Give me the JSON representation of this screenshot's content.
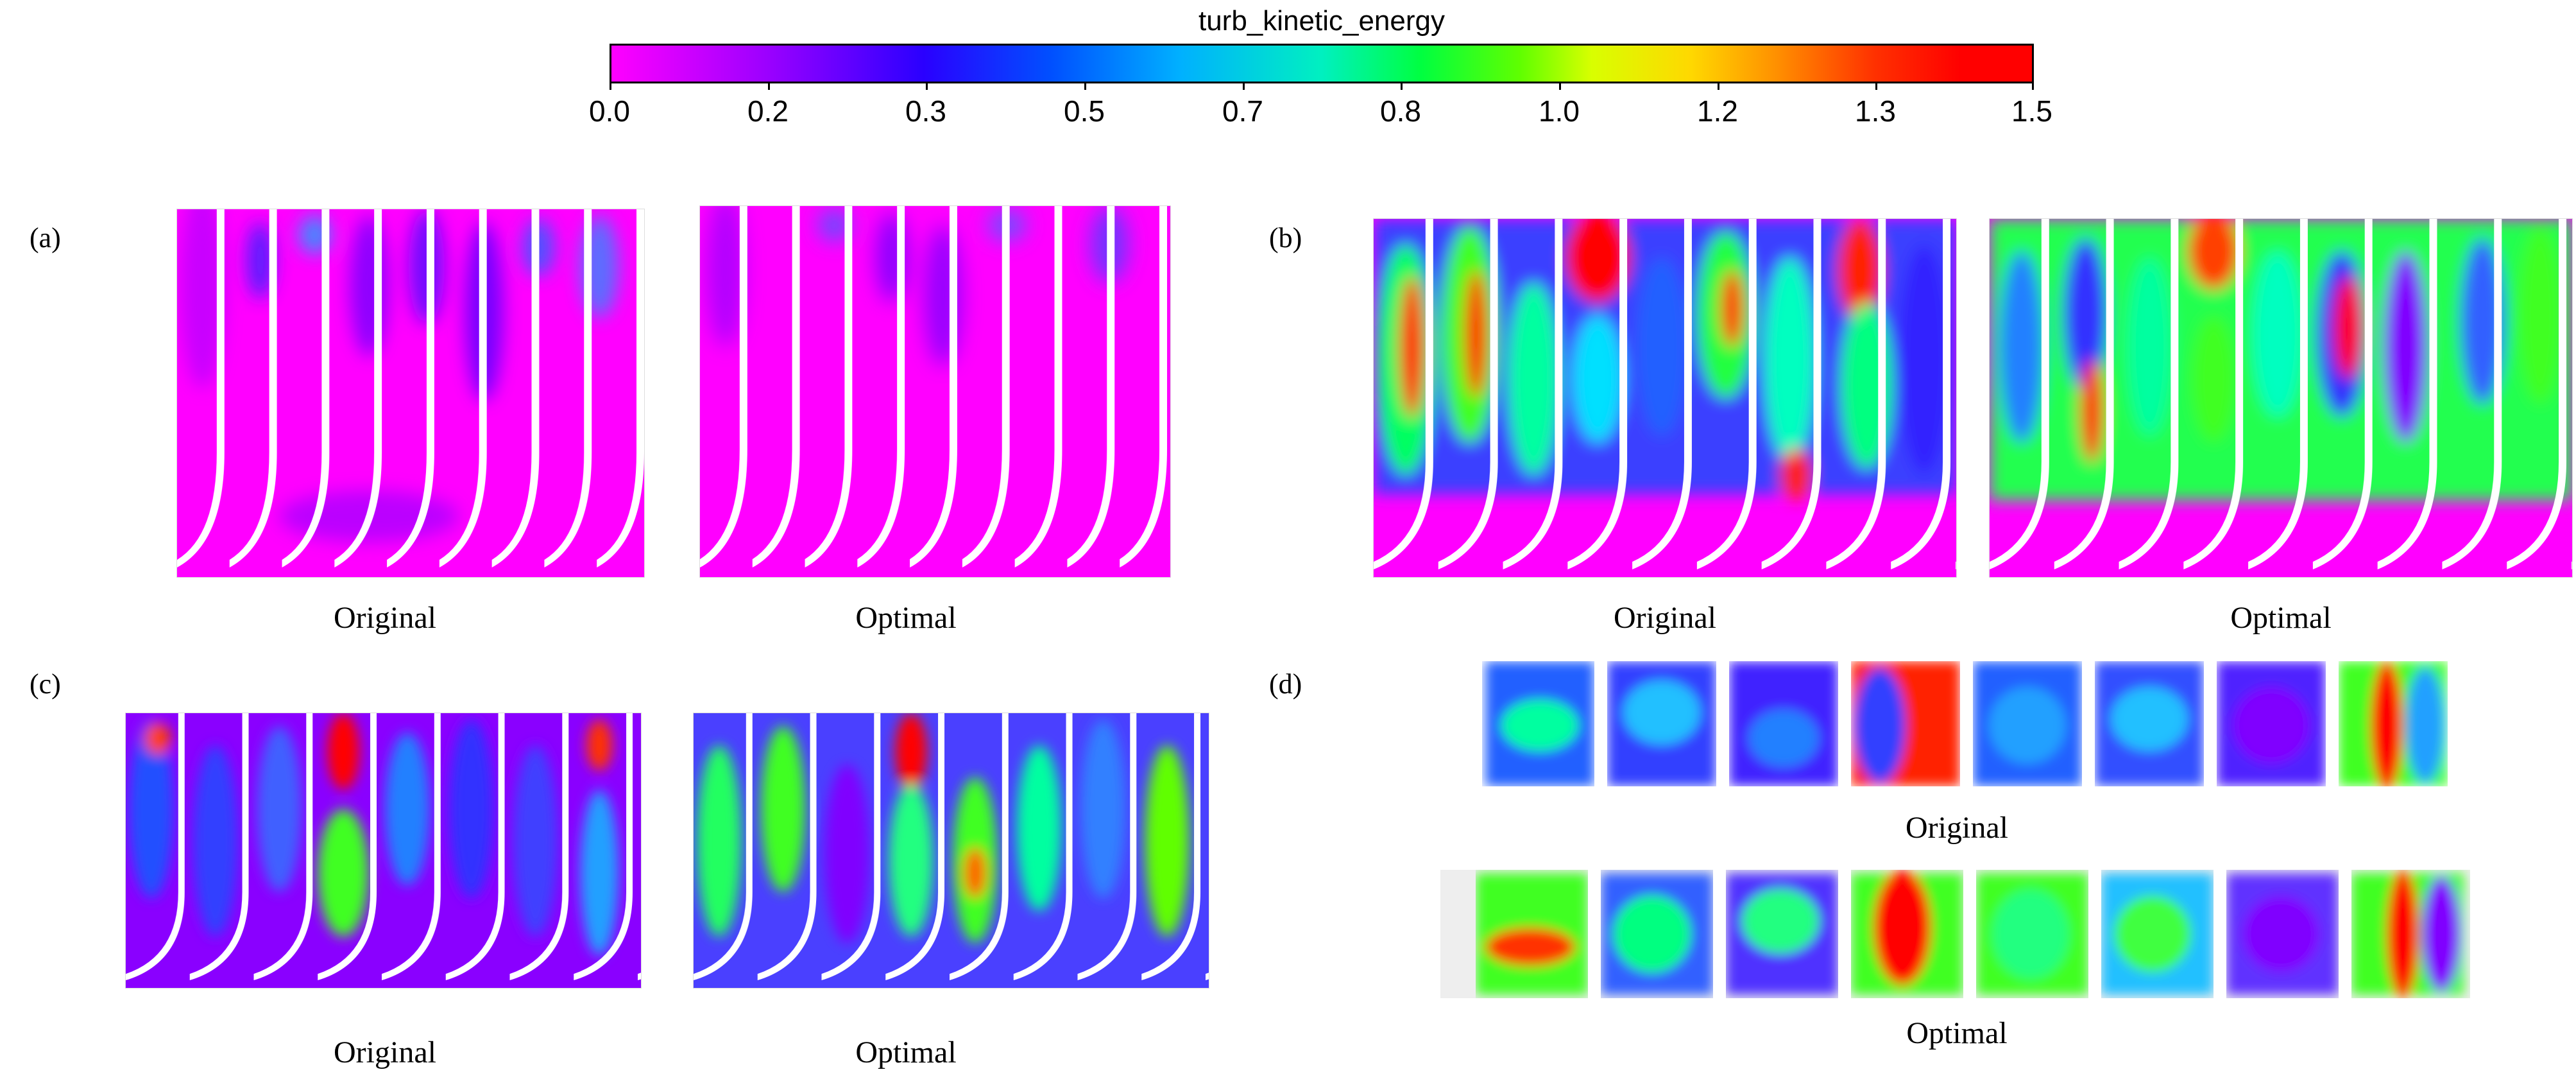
{
  "colorbar": {
    "title": "turb_kinetic_energy",
    "ticks": [
      "0.0",
      "0.2",
      "0.3",
      "0.5",
      "0.7",
      "0.8",
      "1.0",
      "1.2",
      "1.3",
      "1.5"
    ]
  },
  "panels": [
    {
      "label": "(a)",
      "left_caption": "Original",
      "right_caption": "Optimal"
    },
    {
      "label": "(b)",
      "left_caption": "Original",
      "right_caption": "Optimal"
    },
    {
      "label": "(c)",
      "left_caption": "Original",
      "right_caption": "Optimal"
    },
    {
      "label": "(d)",
      "top_caption": "Original",
      "bottom_caption": "Optimal"
    }
  ],
  "colors": {
    "low": "#ff00ff",
    "mid_low": "#2a00ff",
    "mid": "#00ff40",
    "high": "#ff0000"
  }
}
